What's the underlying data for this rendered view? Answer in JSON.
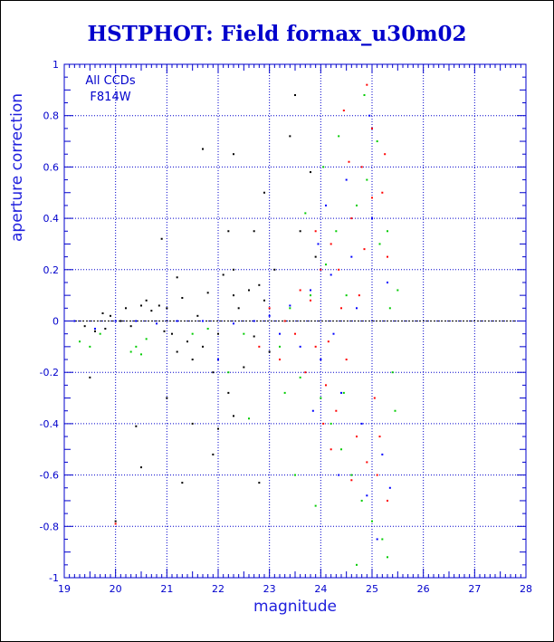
{
  "chart_data": {
    "type": "scatter",
    "title": "HSTPHOT: Field fornax_u30m02",
    "xlabel": "magnitude",
    "ylabel": "aperture correction",
    "xlim": [
      19,
      28
    ],
    "ylim": [
      -1,
      1
    ],
    "grid": true,
    "x_ticks": [
      "19",
      "20",
      "21",
      "22",
      "23",
      "24",
      "25",
      "26",
      "27",
      "28"
    ],
    "y_ticks": [
      "-1",
      "-0.8",
      "-0.6",
      "-0.4",
      "-0.2",
      "0",
      "0.2",
      "0.4",
      "0.6",
      "0.8",
      "1"
    ],
    "annotations": [
      "All CCDs",
      "F814W"
    ],
    "colors": {
      "axes": "#0000cc",
      "grid": "#0000cc",
      "zero_line": "#000000",
      "series": [
        "#000000",
        "#ff0000",
        "#00cc00",
        "#0000ff"
      ]
    },
    "series": [
      {
        "color": "#000000",
        "points": [
          [
            19.2,
            0.0
          ],
          [
            19.4,
            -0.02
          ],
          [
            19.6,
            -0.04
          ],
          [
            19.75,
            0.03
          ],
          [
            19.8,
            -0.03
          ],
          [
            19.9,
            0.02
          ],
          [
            20.1,
            0.0
          ],
          [
            20.2,
            0.05
          ],
          [
            20.3,
            -0.02
          ],
          [
            20.5,
            0.06
          ],
          [
            20.6,
            0.08
          ],
          [
            20.7,
            0.04
          ],
          [
            20.85,
            0.06
          ],
          [
            20.95,
            -0.04
          ],
          [
            21.0,
            0.05
          ],
          [
            21.1,
            -0.05
          ],
          [
            21.2,
            -0.12
          ],
          [
            21.3,
            0.09
          ],
          [
            21.4,
            -0.08
          ],
          [
            21.5,
            -0.15
          ],
          [
            21.6,
            0.02
          ],
          [
            21.7,
            -0.1
          ],
          [
            21.8,
            0.11
          ],
          [
            21.9,
            -0.2
          ],
          [
            22.0,
            -0.05
          ],
          [
            22.1,
            0.18
          ],
          [
            22.2,
            -0.28
          ],
          [
            22.3,
            0.1
          ],
          [
            22.4,
            0.05
          ],
          [
            22.5,
            -0.18
          ],
          [
            22.6,
            0.12
          ],
          [
            22.7,
            -0.06
          ],
          [
            22.8,
            0.14
          ],
          [
            22.9,
            0.08
          ],
          [
            23.0,
            -0.12
          ],
          [
            23.1,
            0.2
          ],
          [
            21.7,
            0.67
          ],
          [
            22.3,
            0.65
          ],
          [
            22.9,
            0.5
          ],
          [
            22.7,
            0.35
          ],
          [
            22.2,
            0.35
          ],
          [
            22.3,
            0.2
          ],
          [
            20.0,
            -0.78
          ],
          [
            20.5,
            -0.57
          ],
          [
            21.3,
            -0.63
          ],
          [
            22.8,
            -0.63
          ],
          [
            20.4,
            -0.41
          ],
          [
            21.9,
            -0.52
          ],
          [
            22.3,
            -0.37
          ],
          [
            19.5,
            -0.22
          ],
          [
            21.0,
            -0.3
          ],
          [
            21.5,
            -0.4
          ],
          [
            23.5,
            0.88
          ],
          [
            23.4,
            0.72
          ],
          [
            23.6,
            0.35
          ],
          [
            23.8,
            0.58
          ],
          [
            23.9,
            0.25
          ],
          [
            20.9,
            0.32
          ],
          [
            21.2,
            0.17
          ],
          [
            22.0,
            -0.42
          ]
        ]
      },
      {
        "color": "#ff0000",
        "points": [
          [
            23.3,
            0.0
          ],
          [
            23.5,
            -0.05
          ],
          [
            23.6,
            0.12
          ],
          [
            23.7,
            -0.2
          ],
          [
            23.8,
            0.08
          ],
          [
            23.9,
            -0.1
          ],
          [
            24.0,
            0.2
          ],
          [
            24.1,
            -0.25
          ],
          [
            24.2,
            0.3
          ],
          [
            24.3,
            -0.35
          ],
          [
            24.4,
            0.05
          ],
          [
            24.5,
            -0.15
          ],
          [
            24.6,
            0.4
          ],
          [
            24.7,
            -0.45
          ],
          [
            24.8,
            0.6
          ],
          [
            24.9,
            -0.55
          ],
          [
            25.0,
            0.75
          ],
          [
            25.1,
            -0.6
          ],
          [
            25.2,
            0.5
          ],
          [
            25.3,
            -0.7
          ],
          [
            24.45,
            0.82
          ],
          [
            24.9,
            0.92
          ],
          [
            25.0,
            0.48
          ],
          [
            24.6,
            -0.62
          ],
          [
            24.2,
            -0.5
          ],
          [
            23.9,
            0.35
          ],
          [
            24.35,
            0.2
          ],
          [
            24.75,
            0.1
          ],
          [
            25.05,
            -0.3
          ],
          [
            25.3,
            0.25
          ],
          [
            22.8,
            -0.1
          ],
          [
            23.0,
            0.05
          ],
          [
            23.2,
            -0.15
          ],
          [
            24.15,
            -0.08
          ],
          [
            24.55,
            0.62
          ],
          [
            25.25,
            0.65
          ],
          [
            24.05,
            -0.4
          ],
          [
            24.85,
            0.28
          ],
          [
            25.15,
            -0.45
          ],
          [
            20.0,
            -0.79
          ]
        ]
      },
      {
        "color": "#00cc00",
        "points": [
          [
            19.3,
            -0.08
          ],
          [
            19.5,
            -0.1
          ],
          [
            19.7,
            -0.05
          ],
          [
            20.3,
            -0.12
          ],
          [
            20.4,
            -0.1
          ],
          [
            20.5,
            -0.13
          ],
          [
            20.6,
            -0.07
          ],
          [
            21.5,
            -0.05
          ],
          [
            21.8,
            -0.03
          ],
          [
            22.2,
            -0.2
          ],
          [
            22.5,
            -0.05
          ],
          [
            23.2,
            -0.1
          ],
          [
            23.4,
            0.05
          ],
          [
            23.6,
            -0.22
          ],
          [
            23.8,
            0.1
          ],
          [
            24.0,
            -0.3
          ],
          [
            24.1,
            0.22
          ],
          [
            24.2,
            -0.4
          ],
          [
            24.3,
            0.35
          ],
          [
            24.4,
            -0.5
          ],
          [
            24.5,
            0.1
          ],
          [
            24.6,
            -0.6
          ],
          [
            24.7,
            0.45
          ],
          [
            24.8,
            -0.7
          ],
          [
            24.9,
            0.55
          ],
          [
            25.0,
            -0.78
          ],
          [
            25.1,
            0.7
          ],
          [
            25.2,
            -0.85
          ],
          [
            25.3,
            0.35
          ],
          [
            25.4,
            -0.2
          ],
          [
            25.5,
            0.12
          ],
          [
            24.35,
            0.72
          ],
          [
            24.85,
            0.88
          ],
          [
            23.5,
            -0.6
          ],
          [
            23.9,
            -0.72
          ],
          [
            24.7,
            -0.95
          ],
          [
            25.3,
            -0.92
          ],
          [
            23.7,
            0.42
          ],
          [
            24.05,
            0.6
          ],
          [
            24.45,
            -0.28
          ],
          [
            25.15,
            0.3
          ],
          [
            25.35,
            0.05
          ],
          [
            25.45,
            -0.35
          ],
          [
            23.3,
            -0.28
          ],
          [
            22.6,
            -0.38
          ]
        ]
      },
      {
        "color": "#0000ff",
        "points": [
          [
            19.2,
            0.0
          ],
          [
            19.6,
            -0.03
          ],
          [
            20.0,
            0.0
          ],
          [
            20.4,
            0.0
          ],
          [
            20.8,
            -0.01
          ],
          [
            21.2,
            0.0
          ],
          [
            21.7,
            0.0
          ],
          [
            22.3,
            -0.01
          ],
          [
            22.7,
            0.0
          ],
          [
            23.0,
            0.02
          ],
          [
            23.2,
            -0.05
          ],
          [
            23.4,
            0.06
          ],
          [
            23.6,
            -0.1
          ],
          [
            23.8,
            0.12
          ],
          [
            24.0,
            -0.15
          ],
          [
            24.2,
            0.18
          ],
          [
            24.4,
            -0.28
          ],
          [
            24.6,
            0.25
          ],
          [
            24.8,
            -0.4
          ],
          [
            25.0,
            0.4
          ],
          [
            25.2,
            -0.52
          ],
          [
            25.3,
            0.15
          ],
          [
            24.35,
            -0.6
          ],
          [
            24.9,
            -0.68
          ],
          [
            25.35,
            -0.65
          ],
          [
            24.1,
            0.45
          ],
          [
            24.5,
            0.55
          ],
          [
            24.95,
            0.8
          ],
          [
            23.85,
            -0.35
          ],
          [
            25.1,
            -0.85
          ],
          [
            23.95,
            0.3
          ],
          [
            24.25,
            -0.05
          ],
          [
            24.7,
            0.05
          ],
          [
            22.0,
            -0.15
          ]
        ]
      }
    ]
  }
}
